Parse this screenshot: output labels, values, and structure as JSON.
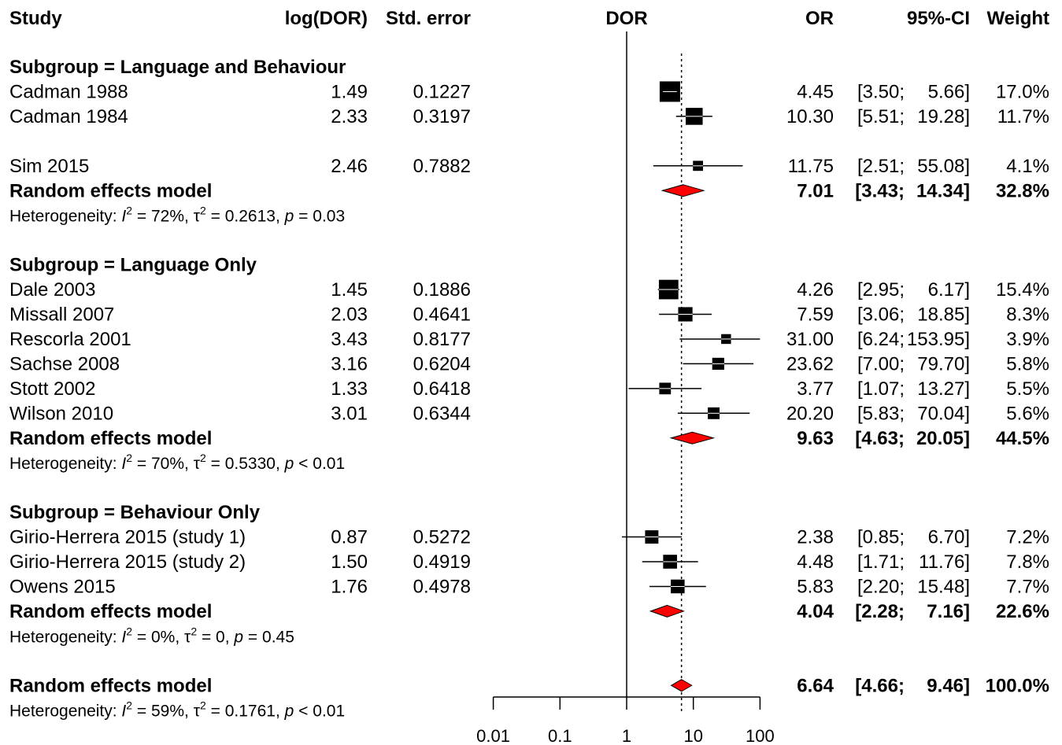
{
  "chart_data": {
    "type": "forest",
    "headers": {
      "study": "Study",
      "logdor": "log(DOR)",
      "se": "Std. error",
      "plot": "DOR",
      "or": "OR",
      "ci": "95%-CI",
      "weight": "Weight"
    },
    "x_scale": "log",
    "xlim": [
      0.01,
      100
    ],
    "x_ticks": [
      "0.01",
      "0.1",
      "1",
      "10",
      "100"
    ],
    "reference_line": 1,
    "overall_line": 6.64,
    "rows": [
      {
        "kind": "subgroup",
        "label": "Subgroup = Language and Behaviour"
      },
      {
        "kind": "study",
        "label": "Cadman 1988",
        "logdor": "1.49",
        "se": "0.1227",
        "or": 4.45,
        "lo": 3.5,
        "hi": 5.66,
        "or_text": "4.45",
        "ci_lo": "[3.50;",
        "ci_hi": "5.66]",
        "weight": "17.0%",
        "w": 17.0
      },
      {
        "kind": "study",
        "label": "Cadman 1984",
        "logdor": "2.33",
        "se": "0.3197",
        "or": 10.3,
        "lo": 5.51,
        "hi": 19.28,
        "or_text": "10.30",
        "ci_lo": "[5.51;",
        "ci_hi": "19.28]",
        "weight": "11.7%",
        "w": 11.7
      },
      {
        "kind": "gap"
      },
      {
        "kind": "study",
        "label": "Sim 2015",
        "logdor": "2.46",
        "se": "0.7882",
        "or": 11.75,
        "lo": 2.51,
        "hi": 55.08,
        "or_text": "11.75",
        "ci_lo": "[2.51;",
        "ci_hi": "55.08]",
        "weight": "4.1%",
        "w": 4.1
      },
      {
        "kind": "model",
        "label": "Random effects model",
        "or": 7.01,
        "lo": 3.43,
        "hi": 14.34,
        "or_text": "7.01",
        "ci_lo": "[3.43;",
        "ci_hi": "14.34]",
        "weight": "32.8%"
      },
      {
        "kind": "het",
        "i2": "72%",
        "tau2": "0.2613",
        "p_op": "=",
        "p": "0.03"
      },
      {
        "kind": "gap"
      },
      {
        "kind": "subgroup",
        "label": "Subgroup = Language Only"
      },
      {
        "kind": "study",
        "label": "Dale 2003",
        "logdor": "1.45",
        "se": "0.1886",
        "or": 4.26,
        "lo": 2.95,
        "hi": 6.17,
        "or_text": "4.26",
        "ci_lo": "[2.95;",
        "ci_hi": "6.17]",
        "weight": "15.4%",
        "w": 15.4
      },
      {
        "kind": "study",
        "label": "Missall 2007",
        "logdor": "2.03",
        "se": "0.4641",
        "or": 7.59,
        "lo": 3.06,
        "hi": 18.85,
        "or_text": "7.59",
        "ci_lo": "[3.06;",
        "ci_hi": "18.85]",
        "weight": "8.3%",
        "w": 8.3
      },
      {
        "kind": "study",
        "label": "Rescorla 2001",
        "logdor": "3.43",
        "se": "0.8177",
        "or": 31.0,
        "lo": 6.24,
        "hi": 153.95,
        "or_text": "31.00",
        "ci_lo": "[6.24;",
        "ci_hi": "153.95]",
        "weight": "3.9%",
        "w": 3.9
      },
      {
        "kind": "study",
        "label": "Sachse 2008",
        "logdor": "3.16",
        "se": "0.6204",
        "or": 23.62,
        "lo": 7.0,
        "hi": 79.7,
        "or_text": "23.62",
        "ci_lo": "[7.00;",
        "ci_hi": "79.70]",
        "weight": "5.8%",
        "w": 5.8
      },
      {
        "kind": "study",
        "label": "Stott 2002",
        "logdor": "1.33",
        "se": "0.6418",
        "or": 3.77,
        "lo": 1.07,
        "hi": 13.27,
        "or_text": "3.77",
        "ci_lo": "[1.07;",
        "ci_hi": "13.27]",
        "weight": "5.5%",
        "w": 5.5
      },
      {
        "kind": "study",
        "label": "Wilson 2010",
        "logdor": "3.01",
        "se": "0.6344",
        "or": 20.2,
        "lo": 5.83,
        "hi": 70.04,
        "or_text": "20.20",
        "ci_lo": "[5.83;",
        "ci_hi": "70.04]",
        "weight": "5.6%",
        "w": 5.6
      },
      {
        "kind": "model",
        "label": "Random effects model",
        "or": 9.63,
        "lo": 4.63,
        "hi": 20.05,
        "or_text": "9.63",
        "ci_lo": "[4.63;",
        "ci_hi": "20.05]",
        "weight": "44.5%"
      },
      {
        "kind": "het",
        "i2": "70%",
        "tau2": "0.5330",
        "p_op": "<",
        "p": "0.01"
      },
      {
        "kind": "gap"
      },
      {
        "kind": "subgroup",
        "label": "Subgroup = Behaviour Only"
      },
      {
        "kind": "study",
        "label": "Girio-Herrera 2015 (study 1)",
        "logdor": "0.87",
        "se": "0.5272",
        "or": 2.38,
        "lo": 0.85,
        "hi": 6.7,
        "or_text": "2.38",
        "ci_lo": "[0.85;",
        "ci_hi": "6.70]",
        "weight": "7.2%",
        "w": 7.2
      },
      {
        "kind": "study",
        "label": "Girio-Herrera 2015 (study 2)",
        "logdor": "1.50",
        "se": "0.4919",
        "or": 4.48,
        "lo": 1.71,
        "hi": 11.76,
        "or_text": "4.48",
        "ci_lo": "[1.71;",
        "ci_hi": "11.76]",
        "weight": "7.8%",
        "w": 7.8
      },
      {
        "kind": "study",
        "label": "Owens 2015",
        "logdor": "1.76",
        "se": "0.4978",
        "or": 5.83,
        "lo": 2.2,
        "hi": 15.48,
        "or_text": "5.83",
        "ci_lo": "[2.20;",
        "ci_hi": "15.48]",
        "weight": "7.7%",
        "w": 7.7
      },
      {
        "kind": "model",
        "label": "Random effects model",
        "or": 4.04,
        "lo": 2.28,
        "hi": 7.16,
        "or_text": "4.04",
        "ci_lo": "[2.28;",
        "ci_hi": "7.16]",
        "weight": "22.6%"
      },
      {
        "kind": "het",
        "i2": "0%",
        "tau2": "0",
        "p_op": "=",
        "p": "0.45"
      },
      {
        "kind": "gap"
      },
      {
        "kind": "model",
        "label": "Random effects model",
        "or": 6.64,
        "lo": 4.66,
        "hi": 9.46,
        "or_text": "6.64",
        "ci_lo": "[4.66;",
        "ci_hi": "9.46]",
        "weight": "100.0%"
      },
      {
        "kind": "het",
        "i2": "59%",
        "tau2": "0.1761",
        "p_op": "<",
        "p": "0.01"
      }
    ],
    "colors": {
      "diamond": "#ff0000",
      "box": "#000000",
      "line": "#000000"
    }
  }
}
